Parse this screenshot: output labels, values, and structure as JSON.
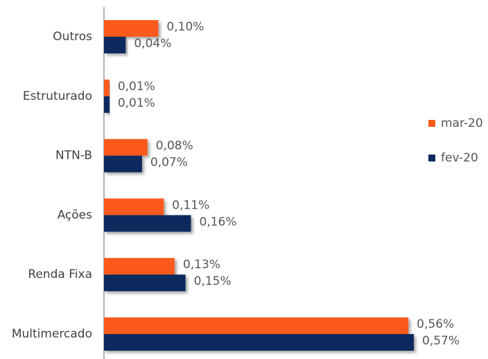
{
  "chart_data": {
    "type": "hbar",
    "categories": [
      "Outros",
      "Estruturado",
      "NTN-B",
      "Ações",
      "Renda Fixa",
      "Multimercado"
    ],
    "series": [
      {
        "name": "mar-20",
        "color": "#fc5a1c",
        "values": [
          0.1,
          0.01,
          0.08,
          0.11,
          0.13,
          0.56
        ],
        "value_labels": [
          "0,10%",
          "0,01%",
          "0,08%",
          "0,11%",
          "0,13%",
          "0,56%"
        ]
      },
      {
        "name": "fev-20",
        "color": "#0b2a5e",
        "values": [
          0.04,
          0.01,
          0.07,
          0.16,
          0.15,
          0.57
        ],
        "value_labels": [
          "0,04%",
          "0,01%",
          "0,07%",
          "0,16%",
          "0,15%",
          "0,57%"
        ]
      }
    ],
    "legend": "right"
  }
}
